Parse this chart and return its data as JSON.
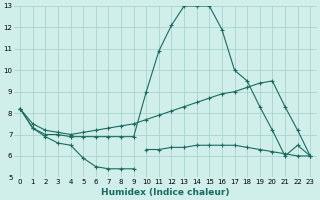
{
  "xlabel": "Humidex (Indice chaleur)",
  "bg_color": "#d0eeea",
  "grid_color": "#aad4ce",
  "line_color": "#1a6b5e",
  "xlim": [
    -0.5,
    23.5
  ],
  "ylim": [
    5,
    13
  ],
  "xticks": [
    0,
    1,
    2,
    3,
    4,
    5,
    6,
    7,
    8,
    9,
    10,
    11,
    12,
    13,
    14,
    15,
    16,
    17,
    18,
    19,
    20,
    21,
    22,
    23
  ],
  "yticks": [
    5,
    6,
    7,
    8,
    9,
    10,
    11,
    12,
    13
  ],
  "s1": {
    "x": [
      0,
      1,
      2,
      3,
      4,
      5,
      6,
      7,
      8,
      9
    ],
    "y": [
      8.2,
      7.3,
      6.9,
      6.6,
      6.5,
      5.9,
      5.5,
      5.4,
      5.4,
      5.4
    ]
  },
  "s2": {
    "x": [
      10,
      11,
      12,
      13,
      14,
      15,
      16,
      17,
      18,
      19,
      20,
      21,
      22,
      23
    ],
    "y": [
      6.3,
      6.3,
      6.4,
      6.4,
      6.5,
      6.5,
      6.5,
      6.5,
      6.4,
      6.3,
      6.2,
      6.1,
      6.0,
      6.0
    ]
  },
  "s3": {
    "x": [
      0,
      1,
      2,
      3,
      4,
      5,
      6,
      7,
      8,
      9,
      10,
      11,
      12,
      13,
      14,
      15,
      16,
      17,
      18,
      19,
      20,
      21,
      22,
      23
    ],
    "y": [
      8.2,
      7.5,
      7.2,
      7.1,
      7.0,
      7.1,
      7.2,
      7.3,
      7.4,
      7.5,
      7.7,
      7.9,
      8.1,
      8.3,
      8.5,
      8.7,
      8.9,
      9.0,
      9.2,
      9.4,
      9.5,
      8.3,
      7.2,
      6.0
    ]
  },
  "s4": {
    "x": [
      0,
      1,
      2,
      3,
      4,
      5,
      6,
      7,
      8,
      9,
      10,
      11,
      12,
      13,
      14,
      15,
      16,
      17,
      18,
      19,
      20,
      21,
      22,
      23
    ],
    "y": [
      8.2,
      7.3,
      7.0,
      7.0,
      6.9,
      6.9,
      6.9,
      6.9,
      6.9,
      6.9,
      9.0,
      10.9,
      12.1,
      13.0,
      13.0,
      13.0,
      11.9,
      10.0,
      9.5,
      8.3,
      7.2,
      6.0,
      6.5,
      6.0
    ]
  }
}
